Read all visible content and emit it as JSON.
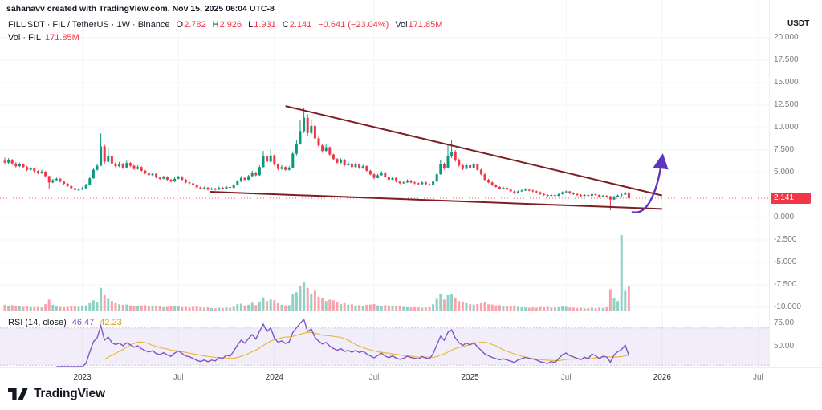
{
  "attribution": "sahanavv created with TradingView.com, Nov 15, 2025 06:04 UTC-8",
  "header": {
    "symbol_line": "FILUSDT · FIL / TetherUS · 1W · Binance",
    "ohlc": [
      {
        "k": "O",
        "v": "2.782"
      },
      {
        "k": "H",
        "v": "2.926"
      },
      {
        "k": "L",
        "v": "1.931"
      },
      {
        "k": "C",
        "v": "2.141"
      }
    ],
    "change": "−0.641 (−23.04%)",
    "vol_label": "Vol",
    "vol_value": "171.85M"
  },
  "vol_row": {
    "label": "Vol · FIL",
    "value": "171.85M"
  },
  "rsi_row": {
    "label": "RSI (14, close)",
    "value": "46.47",
    "signal": "42.23"
  },
  "price_axis": {
    "currency": "USDT",
    "labels": [
      20,
      17.5,
      15,
      12.5,
      10,
      7.5,
      5,
      0,
      -2.5,
      -5,
      -7.5,
      -10
    ],
    "last_price": "2.141"
  },
  "rsi_axis": {
    "labels": [
      75,
      50
    ]
  },
  "time_axis": [
    {
      "label": "2023",
      "week": 21,
      "year": true
    },
    {
      "label": "Jul",
      "week": 47,
      "year": false
    },
    {
      "label": "2024",
      "week": 73,
      "year": true
    },
    {
      "label": "Jul",
      "week": 100,
      "year": false
    },
    {
      "label": "2025",
      "week": 126,
      "year": true
    },
    {
      "label": "Jul",
      "week": 152,
      "year": false
    },
    {
      "label": "2026",
      "week": 178,
      "year": true
    },
    {
      "label": "Jul",
      "week": 204,
      "year": false
    }
  ],
  "logo": {
    "text": "TradingView"
  },
  "colors": {
    "up": "#089981",
    "down": "#f23645",
    "vol_up": "rgba(8,153,129,0.45)",
    "vol_down": "rgba(242,54,69,0.45)",
    "trend": "#7e1d24",
    "arrow": "#5f35c0",
    "rsi": "#7e57c2",
    "rsi_ma": "#e8b940",
    "rsi_band": "rgba(126,87,194,0.10)",
    "rsi_band_edge": "rgba(126,87,194,0.35)",
    "grid": "rgba(42,46,57,0.045)",
    "badge_bg": "#f23645",
    "axis_text": "#787b86"
  },
  "chart_data": {
    "type": "candlestick",
    "symbol": "FILUSDT",
    "exchange": "Binance",
    "interval": "1W",
    "title": "FIL / TetherUS weekly with descending wedge and breakout arrow",
    "y_axis_range": [
      -10,
      20
    ],
    "columns": [
      "open",
      "high",
      "low",
      "close",
      "volume_millions"
    ],
    "price_line": 2.141,
    "candles": [
      [
        6.3,
        6.65,
        5.95,
        6.1,
        45
      ],
      [
        6.1,
        6.6,
        5.95,
        6.35,
        38
      ],
      [
        6.35,
        6.5,
        5.85,
        6.0,
        42
      ],
      [
        6.0,
        6.15,
        5.55,
        5.7,
        36
      ],
      [
        5.7,
        6.1,
        5.6,
        5.9,
        33
      ],
      [
        5.9,
        6.0,
        5.45,
        5.6,
        30
      ],
      [
        5.6,
        5.75,
        5.15,
        5.3,
        35
      ],
      [
        5.3,
        5.6,
        5.2,
        5.45,
        28
      ],
      [
        5.45,
        5.55,
        5.0,
        5.15,
        28
      ],
      [
        5.15,
        5.25,
        4.8,
        4.95,
        30
      ],
      [
        4.95,
        5.3,
        4.85,
        5.1,
        26
      ],
      [
        5.1,
        5.15,
        4.45,
        4.6,
        48
      ],
      [
        4.6,
        4.65,
        3.15,
        3.9,
        80
      ],
      [
        3.9,
        4.3,
        3.8,
        4.15,
        45
      ],
      [
        4.15,
        4.45,
        4.05,
        4.3,
        32
      ],
      [
        4.3,
        4.4,
        3.9,
        4.0,
        30
      ],
      [
        4.0,
        4.1,
        3.65,
        3.75,
        28
      ],
      [
        3.75,
        3.85,
        3.4,
        3.5,
        30
      ],
      [
        3.5,
        3.6,
        3.15,
        3.25,
        34
      ],
      [
        3.25,
        3.35,
        2.95,
        3.05,
        36
      ],
      [
        3.05,
        3.25,
        3.0,
        3.1,
        30
      ],
      [
        3.1,
        3.4,
        3.05,
        3.25,
        32
      ],
      [
        3.25,
        3.75,
        3.2,
        3.6,
        40
      ],
      [
        3.6,
        4.5,
        3.55,
        4.35,
        55
      ],
      [
        4.35,
        5.5,
        4.3,
        5.3,
        75
      ],
      [
        5.3,
        6.0,
        5.2,
        5.75,
        60
      ],
      [
        5.75,
        9.35,
        5.7,
        7.9,
        160
      ],
      [
        7.9,
        8.1,
        5.9,
        6.2,
        110
      ],
      [
        6.2,
        7.8,
        6.1,
        6.85,
        85
      ],
      [
        6.85,
        6.95,
        5.85,
        6.0,
        70
      ],
      [
        6.0,
        6.15,
        5.55,
        5.7,
        55
      ],
      [
        5.7,
        6.2,
        5.6,
        5.95,
        48
      ],
      [
        5.95,
        6.05,
        5.4,
        5.55,
        44
      ],
      [
        5.55,
        6.3,
        5.5,
        6.05,
        46
      ],
      [
        6.05,
        6.15,
        5.6,
        5.75,
        40
      ],
      [
        5.75,
        5.85,
        5.3,
        5.4,
        38
      ],
      [
        5.4,
        5.8,
        5.3,
        5.6,
        36
      ],
      [
        5.6,
        5.7,
        5.1,
        5.2,
        40
      ],
      [
        5.2,
        5.3,
        4.8,
        4.9,
        42
      ],
      [
        4.9,
        5.0,
        4.6,
        4.7,
        38
      ],
      [
        4.7,
        5.0,
        4.6,
        4.85,
        32
      ],
      [
        4.85,
        4.95,
        4.35,
        4.45,
        36
      ],
      [
        4.45,
        4.55,
        4.2,
        4.3,
        33
      ],
      [
        4.3,
        4.65,
        4.25,
        4.5,
        28
      ],
      [
        4.5,
        4.6,
        4.1,
        4.2,
        30
      ],
      [
        4.2,
        4.3,
        3.9,
        4.0,
        34
      ],
      [
        4.0,
        4.45,
        3.95,
        4.3,
        36
      ],
      [
        4.3,
        4.65,
        4.25,
        4.5,
        32
      ],
      [
        4.5,
        4.6,
        4.1,
        4.2,
        28
      ],
      [
        4.2,
        4.3,
        3.8,
        3.9,
        30
      ],
      [
        3.9,
        4.0,
        3.7,
        3.8,
        26
      ],
      [
        3.8,
        3.9,
        3.5,
        3.6,
        30
      ],
      [
        3.6,
        3.7,
        3.25,
        3.35,
        32
      ],
      [
        3.35,
        3.45,
        3.1,
        3.2,
        28
      ],
      [
        3.2,
        3.45,
        3.1,
        3.3,
        24
      ],
      [
        3.3,
        3.4,
        3.0,
        3.1,
        26
      ],
      [
        3.1,
        3.35,
        3.05,
        3.2,
        22
      ],
      [
        3.2,
        3.3,
        3.0,
        3.1,
        20
      ],
      [
        3.1,
        3.45,
        3.05,
        3.3,
        24
      ],
      [
        3.3,
        3.4,
        3.1,
        3.2,
        22
      ],
      [
        3.2,
        3.55,
        3.15,
        3.4,
        26
      ],
      [
        3.4,
        3.5,
        3.2,
        3.3,
        24
      ],
      [
        3.3,
        3.75,
        3.25,
        3.6,
        30
      ],
      [
        3.6,
        4.15,
        3.55,
        4.0,
        48
      ],
      [
        4.0,
        4.6,
        3.95,
        4.4,
        52
      ],
      [
        4.4,
        4.55,
        4.1,
        4.2,
        40
      ],
      [
        4.2,
        4.75,
        4.15,
        4.6,
        44
      ],
      [
        4.6,
        5.2,
        4.55,
        5.0,
        58
      ],
      [
        5.0,
        5.1,
        4.6,
        4.7,
        42
      ],
      [
        4.7,
        5.8,
        4.65,
        5.6,
        66
      ],
      [
        5.6,
        7.4,
        5.55,
        6.8,
        95
      ],
      [
        6.8,
        6.95,
        6.0,
        6.2,
        70
      ],
      [
        6.2,
        7.6,
        6.1,
        6.9,
        80
      ],
      [
        6.9,
        7.0,
        5.75,
        5.9,
        75
      ],
      [
        5.9,
        6.0,
        5.25,
        5.4,
        55
      ],
      [
        5.4,
        5.8,
        5.3,
        5.6,
        44
      ],
      [
        5.6,
        5.7,
        5.2,
        5.3,
        40
      ],
      [
        5.3,
        5.7,
        5.2,
        5.5,
        42
      ],
      [
        5.5,
        7.35,
        5.45,
        7.1,
        120
      ],
      [
        7.1,
        8.6,
        6.9,
        8.2,
        130
      ],
      [
        8.2,
        10.8,
        8.1,
        9.6,
        170
      ],
      [
        9.6,
        12.25,
        9.4,
        11.1,
        200
      ],
      [
        11.1,
        11.5,
        9.1,
        9.4,
        160
      ],
      [
        9.4,
        10.9,
        9.2,
        10.2,
        120
      ],
      [
        10.2,
        10.35,
        8.6,
        8.8,
        140
      ],
      [
        8.8,
        9.0,
        7.8,
        8.0,
        100
      ],
      [
        8.0,
        8.15,
        7.2,
        7.4,
        90
      ],
      [
        7.4,
        8.1,
        7.3,
        7.8,
        70
      ],
      [
        7.8,
        7.9,
        6.85,
        7.0,
        80
      ],
      [
        7.0,
        7.1,
        6.35,
        6.5,
        75
      ],
      [
        6.5,
        6.6,
        5.95,
        6.1,
        60
      ],
      [
        6.1,
        6.6,
        6.0,
        6.4,
        50
      ],
      [
        6.4,
        6.5,
        5.7,
        5.8,
        55
      ],
      [
        5.8,
        6.2,
        5.7,
        6.0,
        45
      ],
      [
        6.0,
        6.1,
        5.5,
        5.6,
        48
      ],
      [
        5.6,
        6.1,
        5.55,
        5.9,
        40
      ],
      [
        5.9,
        6.0,
        5.4,
        5.5,
        42
      ],
      [
        5.5,
        5.85,
        5.4,
        5.7,
        38
      ],
      [
        5.7,
        5.8,
        5.1,
        5.2,
        44
      ],
      [
        5.2,
        5.3,
        4.7,
        4.8,
        46
      ],
      [
        4.8,
        4.9,
        4.25,
        4.4,
        50
      ],
      [
        4.4,
        4.85,
        4.35,
        4.7,
        40
      ],
      [
        4.7,
        5.15,
        4.65,
        5.0,
        38
      ],
      [
        5.0,
        5.1,
        4.4,
        4.5,
        42
      ],
      [
        4.5,
        4.6,
        4.1,
        4.2,
        40
      ],
      [
        4.2,
        4.55,
        4.15,
        4.4,
        34
      ],
      [
        4.4,
        4.5,
        3.9,
        4.0,
        38
      ],
      [
        4.0,
        4.1,
        3.7,
        3.8,
        36
      ],
      [
        3.8,
        4.05,
        3.75,
        3.9,
        30
      ],
      [
        3.9,
        4.25,
        3.85,
        4.1,
        28
      ],
      [
        4.1,
        4.2,
        3.8,
        3.9,
        26
      ],
      [
        3.9,
        4.0,
        3.7,
        3.8,
        28
      ],
      [
        3.8,
        3.9,
        3.6,
        3.7,
        26
      ],
      [
        3.7,
        4.05,
        3.65,
        3.9,
        24
      ],
      [
        3.9,
        4.0,
        3.6,
        3.7,
        26
      ],
      [
        3.7,
        3.8,
        3.5,
        3.6,
        28
      ],
      [
        3.6,
        4.2,
        3.55,
        4.0,
        48
      ],
      [
        4.0,
        5.0,
        3.95,
        4.8,
        85
      ],
      [
        4.8,
        6.4,
        4.75,
        5.9,
        120
      ],
      [
        5.9,
        6.1,
        5.3,
        5.5,
        80
      ],
      [
        5.5,
        8.2,
        5.45,
        6.8,
        110
      ],
      [
        6.8,
        8.6,
        6.6,
        7.3,
        115
      ],
      [
        7.3,
        7.5,
        6.2,
        6.4,
        90
      ],
      [
        6.4,
        6.55,
        5.6,
        5.8,
        70
      ],
      [
        5.8,
        5.95,
        5.25,
        5.4,
        60
      ],
      [
        5.4,
        6.0,
        5.35,
        5.8,
        55
      ],
      [
        5.8,
        5.9,
        5.35,
        5.5,
        48
      ],
      [
        5.5,
        6.1,
        5.45,
        5.9,
        46
      ],
      [
        5.9,
        6.0,
        5.2,
        5.3,
        50
      ],
      [
        5.3,
        5.4,
        4.7,
        4.8,
        55
      ],
      [
        4.8,
        4.9,
        4.1,
        4.2,
        60
      ],
      [
        4.2,
        4.3,
        3.8,
        3.9,
        48
      ],
      [
        3.9,
        4.0,
        3.5,
        3.6,
        46
      ],
      [
        3.6,
        3.7,
        3.3,
        3.4,
        40
      ],
      [
        3.4,
        3.5,
        3.1,
        3.2,
        42
      ],
      [
        3.2,
        3.45,
        3.15,
        3.3,
        32
      ],
      [
        3.3,
        3.4,
        3.0,
        3.1,
        34
      ],
      [
        3.1,
        3.2,
        2.8,
        2.9,
        38
      ],
      [
        2.9,
        3.0,
        2.6,
        2.7,
        40
      ],
      [
        2.7,
        3.0,
        2.65,
        2.9,
        30
      ],
      [
        2.9,
        3.15,
        2.85,
        3.0,
        28
      ],
      [
        3.0,
        3.25,
        2.95,
        3.1,
        26
      ],
      [
        3.1,
        3.2,
        2.9,
        3.0,
        24
      ],
      [
        3.0,
        3.1,
        2.8,
        2.9,
        26
      ],
      [
        2.9,
        3.0,
        2.7,
        2.8,
        24
      ],
      [
        2.8,
        2.9,
        2.5,
        2.6,
        30
      ],
      [
        2.6,
        2.7,
        2.4,
        2.5,
        28
      ],
      [
        2.5,
        2.6,
        2.3,
        2.4,
        30
      ],
      [
        2.4,
        2.6,
        2.35,
        2.5,
        24
      ],
      [
        2.5,
        2.6,
        2.3,
        2.4,
        26
      ],
      [
        2.4,
        2.7,
        2.35,
        2.6,
        28
      ],
      [
        2.6,
        2.9,
        2.55,
        2.8,
        34
      ],
      [
        2.8,
        3.0,
        2.75,
        2.9,
        30
      ],
      [
        2.9,
        2.95,
        2.6,
        2.7,
        26
      ],
      [
        2.7,
        2.8,
        2.5,
        2.6,
        24
      ],
      [
        2.6,
        2.7,
        2.4,
        2.5,
        22
      ],
      [
        2.5,
        2.6,
        2.3,
        2.4,
        24
      ],
      [
        2.4,
        2.6,
        2.35,
        2.5,
        20
      ],
      [
        2.5,
        2.55,
        2.3,
        2.4,
        22
      ],
      [
        2.4,
        2.7,
        2.35,
        2.6,
        24
      ],
      [
        2.6,
        2.65,
        2.4,
        2.5,
        20
      ],
      [
        2.5,
        2.55,
        2.2,
        2.3,
        26
      ],
      [
        2.3,
        2.5,
        2.25,
        2.4,
        22
      ],
      [
        2.4,
        2.5,
        2.3,
        2.35,
        28
      ],
      [
        2.35,
        2.4,
        0.8,
        2.0,
        150
      ],
      [
        2.0,
        2.4,
        1.95,
        2.3,
        90
      ],
      [
        2.3,
        2.55,
        2.25,
        2.45,
        70
      ],
      [
        2.45,
        2.7,
        2.2,
        2.55,
        520
      ],
      [
        2.55,
        2.88,
        2.5,
        2.78,
        140
      ],
      [
        2.782,
        2.926,
        1.931,
        2.141,
        171.85
      ]
    ],
    "trendlines": [
      {
        "name": "wedge-upper-trendline",
        "from": [
          76,
          12.4
        ],
        "to": [
          178,
          2.45
        ]
      },
      {
        "name": "wedge-lower-trendline",
        "from": [
          55.5,
          2.86
        ],
        "to": [
          178,
          0.95
        ]
      }
    ],
    "annotations": [
      {
        "name": "breakout-arrow",
        "type": "curved-arrow",
        "from": [
          170,
          0.6
        ],
        "c1": [
          173.5,
          0.25
        ],
        "c2": [
          176.5,
          2.2
        ],
        "to": [
          178,
          6.5
        ]
      }
    ],
    "indicators": {
      "volume": {
        "current_millions": 171.85,
        "spike_millions": 520
      },
      "rsi": {
        "period": 14,
        "source": "close",
        "current": 46.47,
        "ma_current": 42.23,
        "upper_band": 70,
        "lower_band": 30
      }
    }
  }
}
